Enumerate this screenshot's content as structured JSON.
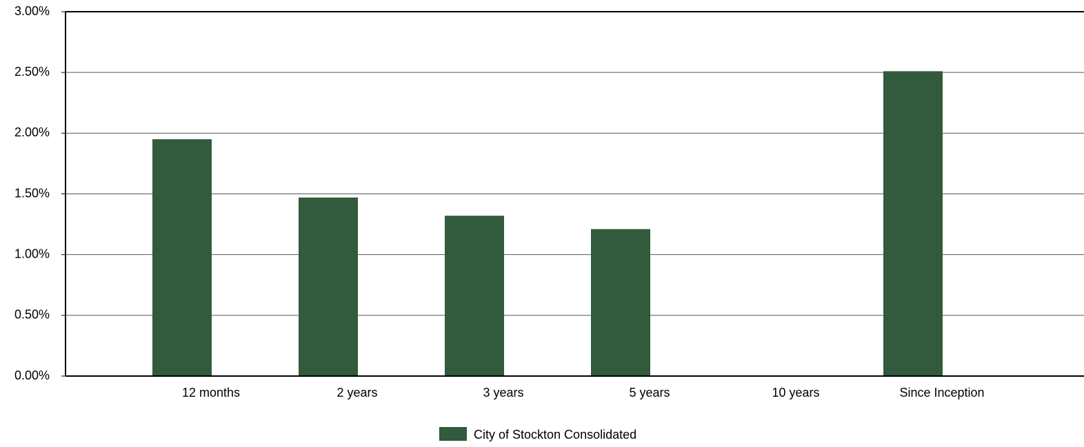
{
  "chart_data": {
    "type": "bar",
    "title": "",
    "xlabel": "",
    "ylabel": "",
    "categories": [
      "12 months",
      "2 years",
      "3 years",
      "5 years",
      "10 years",
      "Since Inception"
    ],
    "series": [
      {
        "name": "City of Stockton Consolidated",
        "values": [
          1.95,
          1.47,
          1.32,
          1.21,
          null,
          2.51
        ],
        "color": "#325a3c"
      }
    ],
    "ylim": [
      0,
      3.0
    ],
    "yticks": [
      0,
      0.5,
      1.0,
      1.5,
      2.0,
      2.5,
      3.0
    ],
    "ytick_labels": [
      "0.00%",
      "0.50%",
      "1.00%",
      "1.50%",
      "2.00%",
      "2.50%",
      "3.00%"
    ],
    "grid": "horizontal",
    "legend_position": "bottom-center"
  }
}
